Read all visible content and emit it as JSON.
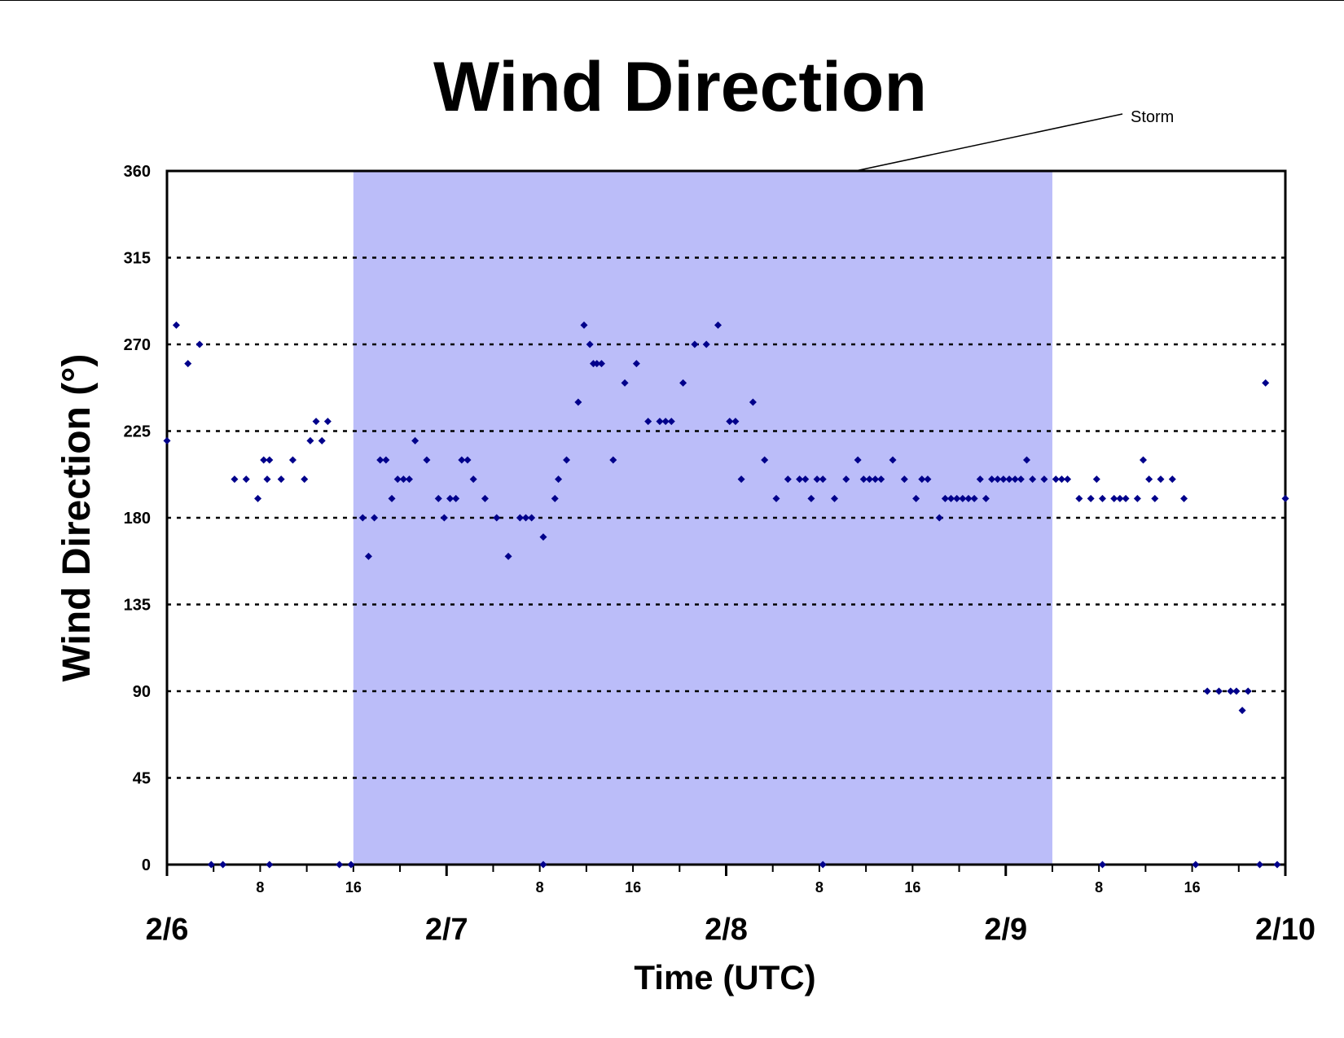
{
  "chart_data": {
    "type": "scatter",
    "title": "Wind Direction",
    "xlabel": "Time (UTC)",
    "ylabel": "Wind Direction (°)",
    "x_unit": "hours from 2/6 00:00",
    "xlim": [
      0,
      96
    ],
    "ylim": [
      0,
      360
    ],
    "y_ticks": [
      0,
      45,
      90,
      135,
      180,
      225,
      270,
      315,
      360
    ],
    "y_tick_labels": [
      "0",
      "45",
      "90",
      "135",
      "180",
      "225",
      "270",
      "315",
      "360"
    ],
    "hour_ticks": [
      {
        "x": 8,
        "label": "8"
      },
      {
        "x": 16,
        "label": "16"
      },
      {
        "x": 32,
        "label": "8"
      },
      {
        "x": 40,
        "label": "16"
      },
      {
        "x": 56,
        "label": "8"
      },
      {
        "x": 64,
        "label": "16"
      },
      {
        "x": 80,
        "label": "8"
      },
      {
        "x": 88,
        "label": "16"
      }
    ],
    "date_ticks": [
      {
        "x": 0,
        "label": "2/6"
      },
      {
        "x": 24,
        "label": "2/7"
      },
      {
        "x": 48,
        "label": "2/8"
      },
      {
        "x": 72,
        "label": "2/9"
      },
      {
        "x": 96,
        "label": "2/10"
      }
    ],
    "grid": "horizontal-dotted",
    "shaded_region": {
      "x_start": 16,
      "x_end": 76,
      "color": "#bbbdf9",
      "label": "Storm"
    },
    "marker_color": "#00008b",
    "points": [
      [
        0,
        220
      ],
      [
        0.8,
        280
      ],
      [
        1.8,
        260
      ],
      [
        2.8,
        270
      ],
      [
        3.8,
        0
      ],
      [
        4.8,
        0
      ],
      [
        5.8,
        200
      ],
      [
        6.8,
        200
      ],
      [
        7.8,
        190
      ],
      [
        8.8,
        0
      ],
      [
        8.3,
        210
      ],
      [
        8.8,
        210
      ],
      [
        8.6,
        200
      ],
      [
        9.8,
        200
      ],
      [
        10.8,
        210
      ],
      [
        11.8,
        200
      ],
      [
        12.3,
        220
      ],
      [
        12.8,
        230
      ],
      [
        13.3,
        220
      ],
      [
        13.8,
        230
      ],
      [
        14.8,
        0
      ],
      [
        15.8,
        0
      ],
      [
        16.8,
        180
      ],
      [
        17.3,
        160
      ],
      [
        17.8,
        180
      ],
      [
        18.3,
        210
      ],
      [
        18.8,
        210
      ],
      [
        19.3,
        190
      ],
      [
        19.8,
        200
      ],
      [
        20.3,
        200
      ],
      [
        20.8,
        200
      ],
      [
        21.3,
        220
      ],
      [
        22.3,
        210
      ],
      [
        23.3,
        190
      ],
      [
        23.8,
        180
      ],
      [
        24.3,
        190
      ],
      [
        24.8,
        190
      ],
      [
        25.3,
        210
      ],
      [
        25.8,
        210
      ],
      [
        26.3,
        200
      ],
      [
        27.3,
        190
      ],
      [
        28.3,
        180
      ],
      [
        29.3,
        160
      ],
      [
        30.3,
        180
      ],
      [
        30.8,
        180
      ],
      [
        31.3,
        180
      ],
      [
        32.3,
        170
      ],
      [
        33.3,
        190
      ],
      [
        33.6,
        200
      ],
      [
        34.3,
        210
      ],
      [
        32.3,
        0
      ],
      [
        35.3,
        240
      ],
      [
        35.8,
        280
      ],
      [
        36.3,
        270
      ],
      [
        36.6,
        260
      ],
      [
        36.9,
        260
      ],
      [
        37.3,
        260
      ],
      [
        38.3,
        210
      ],
      [
        39.3,
        250
      ],
      [
        40.3,
        260
      ],
      [
        41.3,
        230
      ],
      [
        42.3,
        230
      ],
      [
        42.8,
        230
      ],
      [
        43.3,
        230
      ],
      [
        44.3,
        250
      ],
      [
        45.3,
        270
      ],
      [
        46.3,
        270
      ],
      [
        47.3,
        280
      ],
      [
        48.3,
        230
      ],
      [
        48.8,
        230
      ],
      [
        49.3,
        200
      ],
      [
        50.3,
        240
      ],
      [
        51.3,
        210
      ],
      [
        52.3,
        190
      ],
      [
        53.3,
        200
      ],
      [
        54.3,
        200
      ],
      [
        54.8,
        200
      ],
      [
        55.3,
        190
      ],
      [
        55.8,
        200
      ],
      [
        56.3,
        200
      ],
      [
        56.3,
        0
      ],
      [
        57.3,
        190
      ],
      [
        58.3,
        200
      ],
      [
        59.3,
        210
      ],
      [
        59.8,
        200
      ],
      [
        60.3,
        200
      ],
      [
        60.8,
        200
      ],
      [
        61.3,
        200
      ],
      [
        62.3,
        210
      ],
      [
        63.3,
        200
      ],
      [
        64.3,
        190
      ],
      [
        64.8,
        200
      ],
      [
        65.3,
        200
      ],
      [
        66.3,
        180
      ],
      [
        66.8,
        190
      ],
      [
        67.3,
        190
      ],
      [
        67.8,
        190
      ],
      [
        68.3,
        190
      ],
      [
        68.8,
        190
      ],
      [
        69.3,
        190
      ],
      [
        69.8,
        200
      ],
      [
        70.3,
        190
      ],
      [
        70.8,
        200
      ],
      [
        71.3,
        200
      ],
      [
        71.8,
        200
      ],
      [
        72.3,
        200
      ],
      [
        72.8,
        200
      ],
      [
        73.3,
        200
      ],
      [
        73.8,
        210
      ],
      [
        74.3,
        200
      ],
      [
        75.3,
        200
      ],
      [
        76.3,
        200
      ],
      [
        76.8,
        200
      ],
      [
        77.3,
        200
      ],
      [
        78.3,
        190
      ],
      [
        79.3,
        190
      ],
      [
        79.8,
        200
      ],
      [
        80.3,
        190
      ],
      [
        81.3,
        190
      ],
      [
        81.8,
        190
      ],
      [
        80.3,
        0
      ],
      [
        82.3,
        190
      ],
      [
        83.3,
        190
      ],
      [
        83.8,
        210
      ],
      [
        84.3,
        200
      ],
      [
        84.8,
        190
      ],
      [
        85.3,
        200
      ],
      [
        86.3,
        200
      ],
      [
        87.3,
        190
      ],
      [
        88.3,
        0
      ],
      [
        89.3,
        90
      ],
      [
        90.3,
        90
      ],
      [
        91.3,
        90
      ],
      [
        91.8,
        90
      ],
      [
        92.3,
        80
      ],
      [
        92.8,
        90
      ],
      [
        93.8,
        0
      ],
      [
        94.3,
        250
      ],
      [
        95.3,
        0
      ],
      [
        96,
        190
      ]
    ]
  }
}
